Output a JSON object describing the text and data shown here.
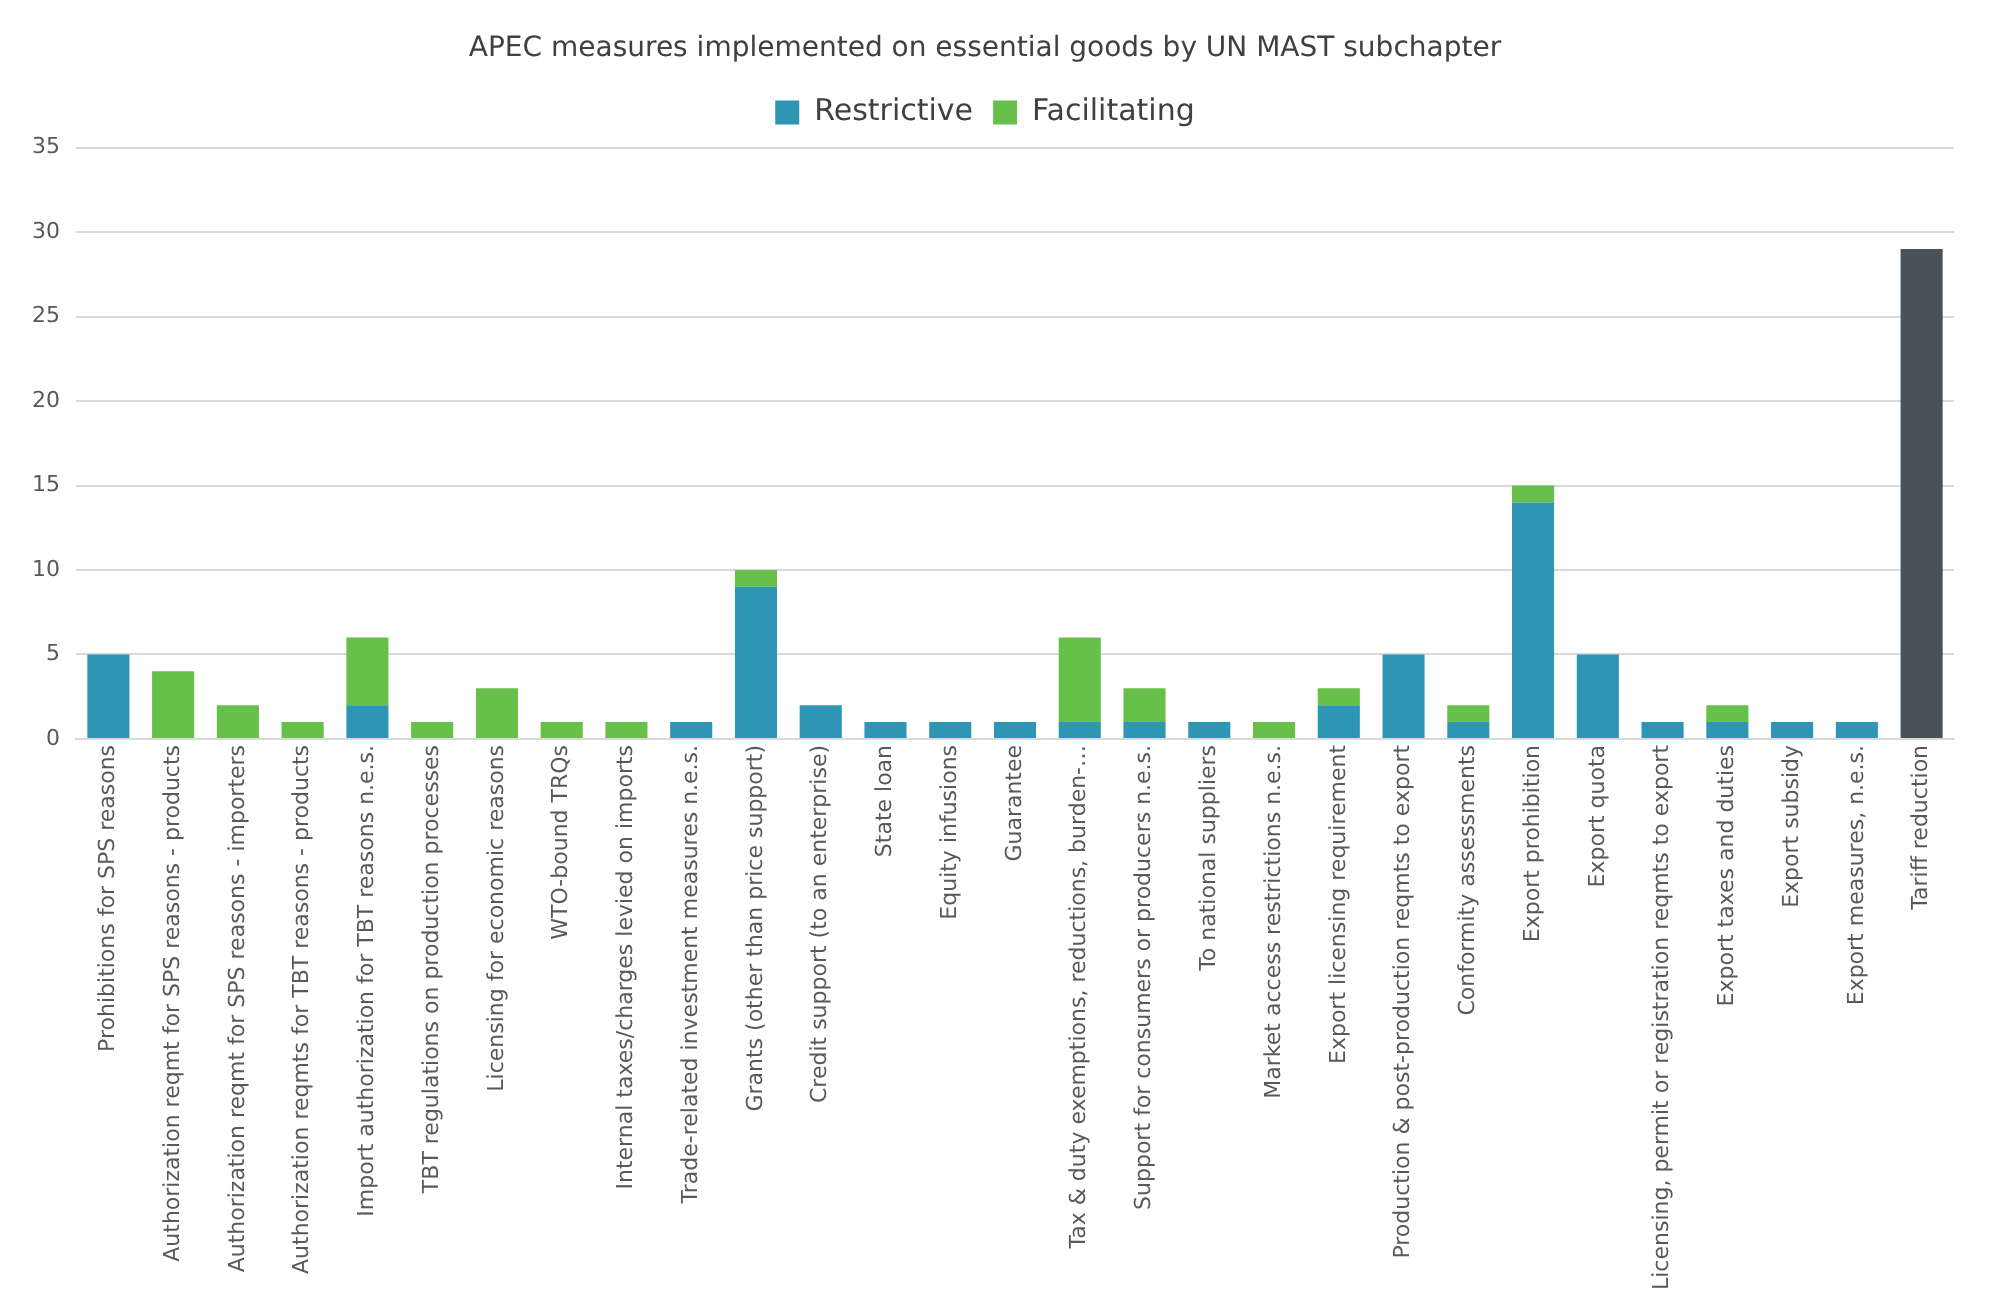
{
  "chart_data": {
    "type": "bar",
    "title": "APEC measures implemented on essential goods by UN MAST subchapter",
    "stacked": true,
    "categories": [
      "Prohibitions for SPS reasons",
      "Authorization reqmt for SPS reasons - products",
      "Authorization reqmt for SPS reasons - importers",
      "Authorization reqmts for TBT reasons - products",
      "Import authorization for TBT reasons n.e.s.",
      "TBT regulations on production processes",
      "Licensing for economic reasons",
      "WTO-bound TRQs",
      "Internal taxes/charges levied on imports",
      "Trade-related investment measures n.e.s.",
      "Grants (other than price support)",
      "Credit support (to an enterprise)",
      "State loan",
      "Equity infusions",
      "Guarantee",
      "Tax & duty exemptions, reductions, burden-…",
      "Support for consumers or producers n.e.s.",
      "To national suppliers",
      "Market access restrictions n.e.s.",
      "Export licensing requirement",
      "Production & post-production reqmts to export",
      "Conformity assessments",
      "Export prohibition",
      "Export quota",
      "Licensing, permit or registration reqmts to export",
      "Export taxes and duties",
      "Export subsidy",
      "Export measures, n.e.s.",
      "Tariff reduction"
    ],
    "series": [
      {
        "name": "Restrictive",
        "color": "#2e95b5",
        "values": [
          5,
          0,
          0,
          0,
          2,
          0,
          0,
          0,
          0,
          1,
          9,
          2,
          1,
          1,
          1,
          1,
          1,
          1,
          0,
          2,
          5,
          1,
          14,
          5,
          1,
          1,
          1,
          1,
          null
        ]
      },
      {
        "name": "Facilitating",
        "color": "#66c04a",
        "values": [
          0,
          4,
          2,
          1,
          4,
          1,
          3,
          1,
          1,
          0,
          1,
          0,
          0,
          0,
          0,
          5,
          2,
          0,
          1,
          1,
          0,
          1,
          1,
          0,
          0,
          1,
          0,
          0,
          null
        ]
      },
      {
        "color": "#4a5259",
        "values": [
          null,
          null,
          null,
          null,
          null,
          null,
          null,
          null,
          null,
          null,
          null,
          null,
          null,
          null,
          null,
          null,
          null,
          null,
          null,
          null,
          null,
          null,
          null,
          null,
          null,
          null,
          null,
          null,
          29
        ]
      }
    ],
    "ylim": [
      0,
      35
    ],
    "yticks": [
      0,
      5,
      10,
      15,
      20,
      25,
      30,
      35
    ],
    "grid": "y",
    "legend": "top"
  }
}
